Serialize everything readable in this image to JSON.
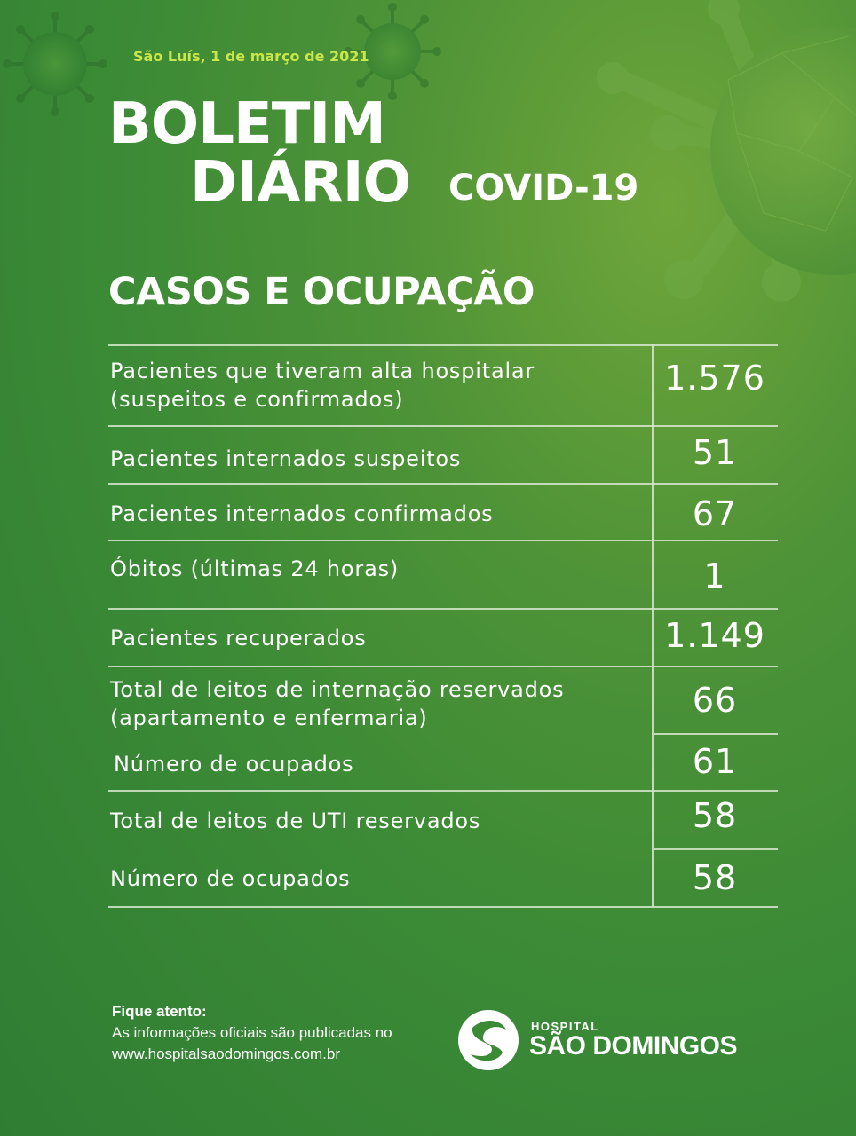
{
  "header": {
    "date": "São Luís, 1 de março de 2021",
    "title_line1": "BOLETIM",
    "title_line2": "DIÁRIO",
    "subtitle": "COVID-19"
  },
  "section_title": "CASOS E OCUPAÇÃO",
  "rows": [
    {
      "label_line1": "Pacientes que tiveram alta hospitalar",
      "label_line2": "(suspeitos e confirmados)",
      "value": "1.576"
    },
    {
      "label_line1": "Pacientes internados suspeitos",
      "value": "51"
    },
    {
      "label_line1": "Pacientes internados confirmados",
      "value": "67"
    },
    {
      "label_line1": "Óbitos (últimas 24 horas)",
      "value": "1"
    },
    {
      "label_line1": "Pacientes recuperados",
      "value": "1.149"
    },
    {
      "label_line1": "Total de leitos de internação reservados",
      "label_line2": "(apartamento e enfermaria)",
      "value": "66"
    },
    {
      "label_line1": "Número de ocupados",
      "value": "61"
    },
    {
      "label_line1": "Total de leitos de UTI reservados",
      "value": "58"
    },
    {
      "label_line1": "Número de ocupados",
      "value": "58"
    }
  ],
  "footer": {
    "title": "Fique atento:",
    "line1": "As informações oficiais são publicadas no",
    "line2": "www.hospitalsaodomingos.com.br"
  },
  "logo": {
    "small": "HOSPITAL",
    "big": "SÃO DOMINGOS"
  },
  "colors": {
    "background": "#3b8a36",
    "date_accent": "#cbe64a",
    "text": "#ffffff"
  },
  "icons": [
    "virus-icon",
    "hospital-logo-icon"
  ]
}
